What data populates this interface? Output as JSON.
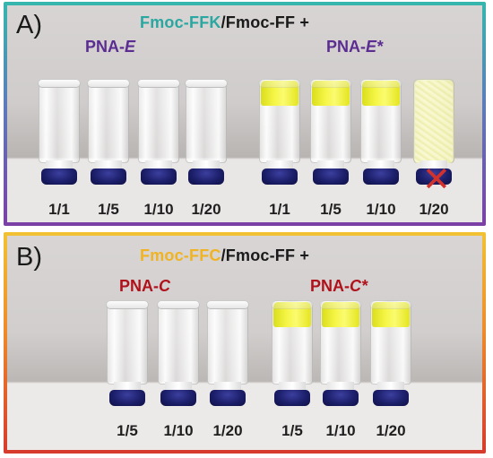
{
  "panel_a": {
    "label": "A)",
    "headline": {
      "part1": "Fmoc-FFK",
      "part2": "/Fmoc-FF +"
    },
    "left_group": {
      "prefix": "PNA-",
      "suffix": "E"
    },
    "right_group": {
      "prefix": "PNA-",
      "suffix": "E*"
    },
    "left_ratios": [
      "1/1",
      "1/5",
      "1/10",
      "1/20"
    ],
    "right_ratios": [
      "1/1",
      "1/5",
      "1/10",
      "1/20"
    ],
    "colors": {
      "headline_accent": "#2aa7a0",
      "group": "#5b2d91",
      "fail_mark": "#d3322c"
    }
  },
  "panel_b": {
    "label": "B)",
    "headline": {
      "part1": "Fmoc-FFC",
      "part2": "/Fmoc-FF +"
    },
    "left_group": {
      "prefix": "PNA-",
      "suffix": "C"
    },
    "right_group": {
      "prefix": "PNA-",
      "suffix": "C*"
    },
    "left_ratios": [
      "1/5",
      "1/10",
      "1/20"
    ],
    "right_ratios": [
      "1/5",
      "1/10",
      "1/20"
    ],
    "colors": {
      "headline_accent": "#f0b323",
      "group": "#b0121b"
    }
  },
  "icons": {
    "failed_vial": "cross-icon"
  }
}
